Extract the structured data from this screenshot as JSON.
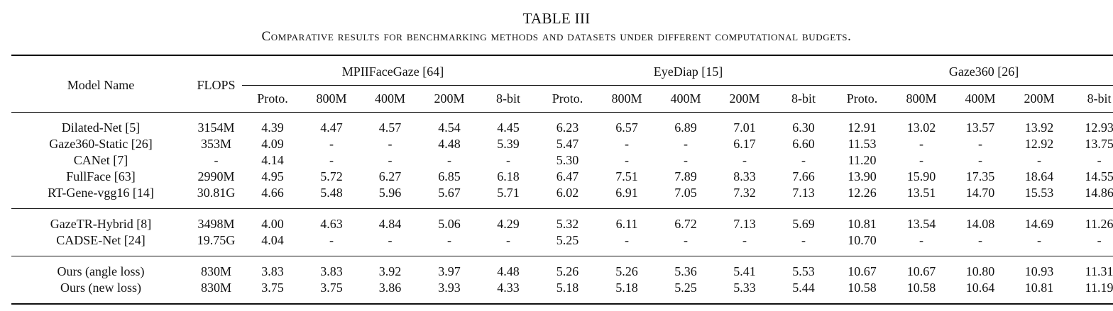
{
  "caption": {
    "number": "TABLE III",
    "text": "Comparative results for benchmarking methods and datasets under different computational budgets."
  },
  "header": {
    "model_name": "Model Name",
    "flops": "FLOPS",
    "datasets": [
      "MPIIFaceGaze [64]",
      "EyeDiap [15]",
      "Gaze360 [26]"
    ],
    "subcolumns": [
      "Proto.",
      "800M",
      "400M",
      "200M",
      "8-bit"
    ]
  },
  "blocks": [
    {
      "rows": [
        {
          "name": "Dilated-Net [5]",
          "flops": "3154M",
          "values": [
            "4.39",
            "4.47",
            "4.57",
            "4.54",
            "4.45",
            "6.23",
            "6.57",
            "6.89",
            "7.01",
            "6.30",
            "12.91",
            "13.02",
            "13.57",
            "13.92",
            "12.93"
          ]
        },
        {
          "name": "Gaze360-Static [26]",
          "flops": "353M",
          "values": [
            "4.09",
            "-",
            "-",
            "4.48",
            "5.39",
            "5.47",
            "-",
            "-",
            "6.17",
            "6.60",
            "11.53",
            "-",
            "-",
            "12.92",
            "13.75"
          ]
        },
        {
          "name": "CANet [7]",
          "flops": "-",
          "values": [
            "4.14",
            "-",
            "-",
            "-",
            "-",
            "5.30",
            "-",
            "-",
            "-",
            "-",
            "11.20",
            "-",
            "-",
            "-",
            "-"
          ]
        },
        {
          "name": "FullFace [63]",
          "flops": "2990M",
          "values": [
            "4.95",
            "5.72",
            "6.27",
            "6.85",
            "6.18",
            "6.47",
            "7.51",
            "7.89",
            "8.33",
            "7.66",
            "13.90",
            "15.90",
            "17.35",
            "18.64",
            "14.55"
          ]
        },
        {
          "name": "RT-Gene-vgg16 [14]",
          "flops": "30.81G",
          "values": [
            "4.66",
            "5.48",
            "5.96",
            "5.67",
            "5.71",
            "6.02",
            "6.91",
            "7.05",
            "7.32",
            "7.13",
            "12.26",
            "13.51",
            "14.70",
            "15.53",
            "14.86"
          ]
        }
      ]
    },
    {
      "rows": [
        {
          "name": "GazeTR-Hybrid [8]",
          "flops": "3498M",
          "values": [
            "4.00",
            "4.63",
            "4.84",
            "5.06",
            "4.29",
            "5.32",
            "6.11",
            "6.72",
            "7.13",
            "5.69",
            "10.81",
            "13.54",
            "14.08",
            "14.69",
            "11.26"
          ]
        },
        {
          "name": "CADSE-Net [24]",
          "flops": "19.75G",
          "values": [
            "4.04",
            "-",
            "-",
            "-",
            "-",
            "5.25",
            "-",
            "-",
            "-",
            "-",
            "10.70",
            "-",
            "-",
            "-",
            "-"
          ]
        }
      ]
    },
    {
      "rows": [
        {
          "name": "Ours (angle loss)",
          "flops": "830M",
          "bold_name": true,
          "bold_cols": [
            0,
            5,
            10
          ],
          "values": [
            "3.83",
            "3.83",
            "3.92",
            "3.97",
            "4.48",
            "5.26",
            "5.26",
            "5.36",
            "5.41",
            "5.53",
            "10.67",
            "10.67",
            "10.80",
            "10.93",
            "11.31"
          ]
        },
        {
          "name": "Ours (new loss)",
          "flops": "830M",
          "bold_name": true,
          "bold_cols": [
            0,
            5,
            10
          ],
          "values": [
            "3.75",
            "3.75",
            "3.86",
            "3.93",
            "4.33",
            "5.18",
            "5.18",
            "5.25",
            "5.33",
            "5.44",
            "10.58",
            "10.58",
            "10.64",
            "10.81",
            "11.19"
          ]
        }
      ]
    }
  ]
}
